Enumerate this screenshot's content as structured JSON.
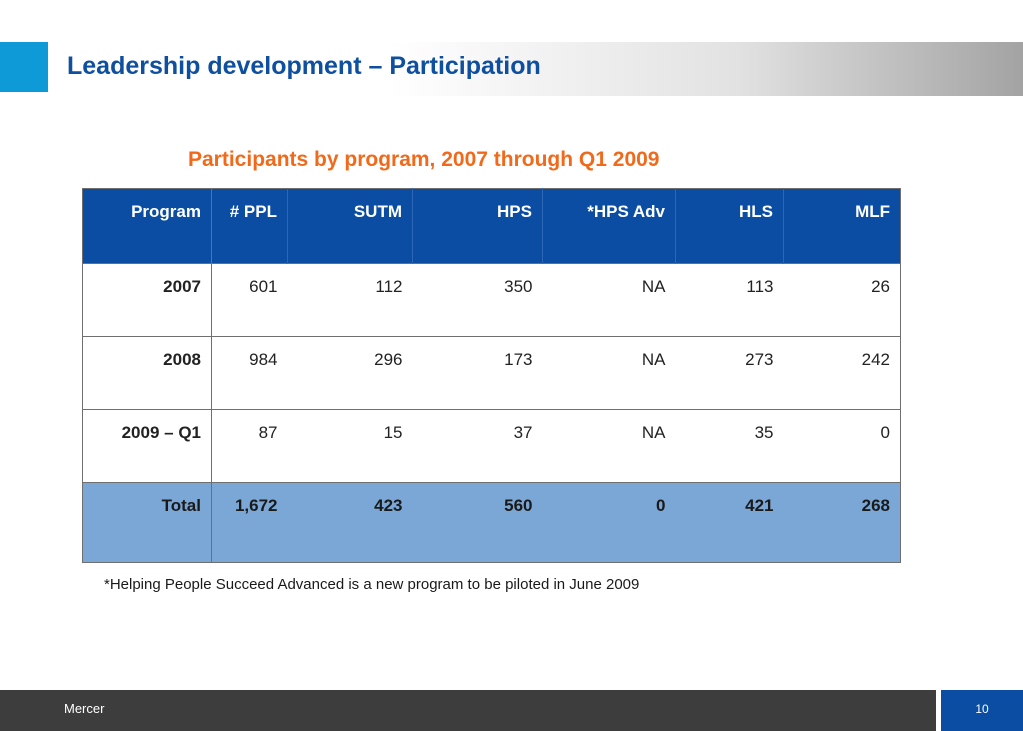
{
  "slide": {
    "title": "Leadership development – Participation",
    "table_title": "Participants by program, 2007 through Q1 2009",
    "footnote": "*Helping People Succeed Advanced is a new program to be piloted in June 2009",
    "brand": "Mercer",
    "page_number": "10"
  },
  "table": {
    "headers": [
      "Program",
      "# PPL",
      "SUTM",
      "HPS",
      "*HPS Adv",
      "HLS",
      "MLF"
    ],
    "rows": [
      [
        "2007",
        "601",
        "112",
        "350",
        "NA",
        "113",
        "26"
      ],
      [
        "2008",
        "984",
        "296",
        "173",
        "NA",
        "273",
        "242"
      ],
      [
        "2009 – Q1",
        "87",
        "15",
        "37",
        "NA",
        "35",
        "0"
      ]
    ],
    "total": [
      "Total",
      "1,672",
      "423",
      "560",
      "0",
      "421",
      "268"
    ]
  },
  "colors": {
    "title": "#0e4fa0",
    "subtitle": "#f16a1b",
    "header_fill": "#0a4da2",
    "total_fill": "#7ba7d6",
    "accent": "#0e9ad7",
    "footer": "#3d3d3d"
  }
}
